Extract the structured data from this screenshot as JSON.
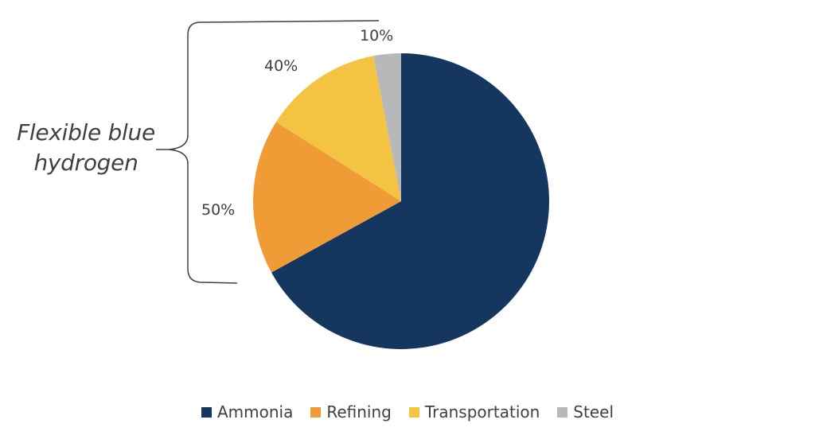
{
  "chart_data": {
    "type": "pie",
    "categories": [
      "Ammonia",
      "Refining",
      "Transportation",
      "Steel"
    ],
    "values": [
      67,
      17,
      13,
      3
    ],
    "colors": [
      "#15365E",
      "#EF9B36",
      "#F5C342",
      "#B7B8BA"
    ],
    "start": "12 o'clock, clockwise",
    "legend_position": "bottom",
    "annotation": {
      "text_lines": [
        "Flexible blue",
        "hydrogen"
      ],
      "brace_side": "left",
      "percent_labels": [
        "10%",
        "40%",
        "50%"
      ]
    }
  }
}
